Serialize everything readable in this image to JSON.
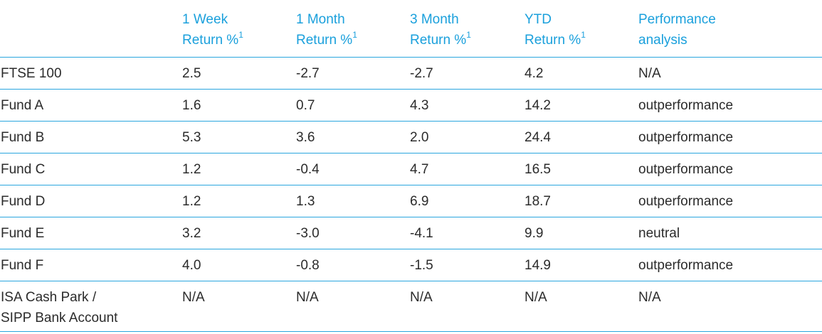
{
  "table": {
    "headers": [
      {
        "line1": "",
        "line2": "",
        "sup": ""
      },
      {
        "line1": "1 Week",
        "line2": "Return %",
        "sup": "1"
      },
      {
        "line1": "1 Month",
        "line2": "Return %",
        "sup": "1"
      },
      {
        "line1": "3 Month",
        "line2": "Return %",
        "sup": "1"
      },
      {
        "line1": "YTD",
        "line2": "Return %",
        "sup": "1"
      },
      {
        "line1": "Performance",
        "line2": "analysis",
        "sup": ""
      }
    ],
    "rows": [
      {
        "name_line1": "FTSE 100",
        "name_line2": "",
        "cells": [
          "2.5",
          "-2.7",
          "-2.7",
          "4.2",
          "N/A"
        ]
      },
      {
        "name_line1": "Fund A",
        "name_line2": "",
        "cells": [
          "1.6",
          "0.7",
          "4.3",
          "14.2",
          "outperformance"
        ]
      },
      {
        "name_line1": "Fund B",
        "name_line2": "",
        "cells": [
          "5.3",
          "3.6",
          "2.0",
          "24.4",
          "outperformance"
        ]
      },
      {
        "name_line1": "Fund C",
        "name_line2": "",
        "cells": [
          "1.2",
          "-0.4",
          "4.7",
          "16.5",
          "outperformance"
        ]
      },
      {
        "name_line1": "Fund D",
        "name_line2": "",
        "cells": [
          "1.2",
          "1.3",
          "6.9",
          "18.7",
          "outperformance"
        ]
      },
      {
        "name_line1": "Fund E",
        "name_line2": "",
        "cells": [
          "3.2",
          "-3.0",
          "-4.1",
          "9.9",
          "neutral"
        ]
      },
      {
        "name_line1": "Fund F",
        "name_line2": "",
        "cells": [
          "4.0",
          "-0.8",
          "-1.5",
          "14.9",
          "outperformance"
        ]
      },
      {
        "name_line1": "ISA Cash Park /",
        "name_line2": "SIPP Bank Account",
        "cells": [
          "N/A",
          "N/A",
          "N/A",
          "N/A",
          "N/A"
        ]
      }
    ]
  },
  "colors": {
    "header_text": "#1aa0dc",
    "rule": "#2aa6de",
    "body_text": "#2b2b2b"
  }
}
